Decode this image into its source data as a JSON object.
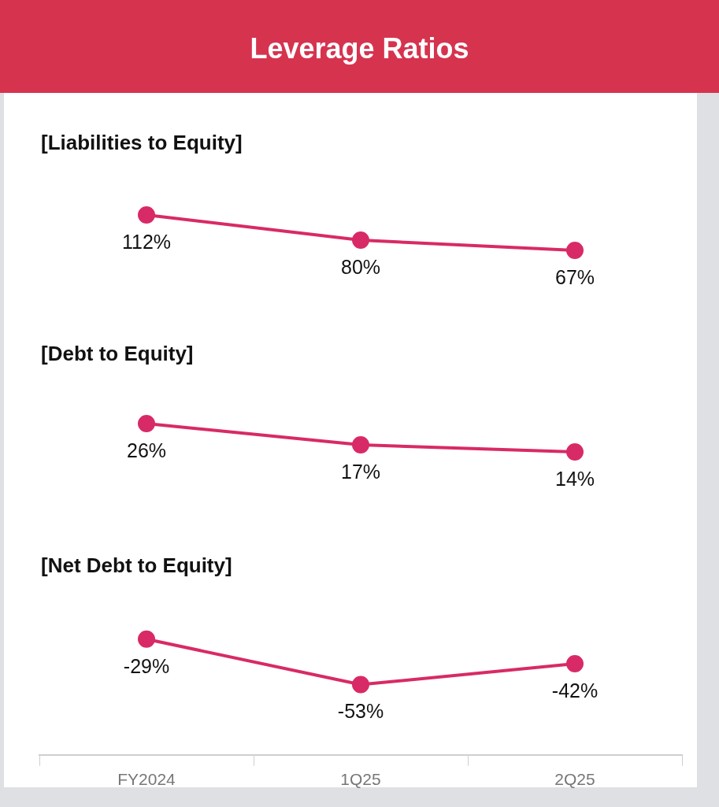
{
  "chart_data": [
    {
      "type": "line",
      "title": "Leverage Ratios",
      "subtitle": "[Liabilities to Equity]",
      "categories": [
        null,
        null,
        null
      ],
      "tick_labels": false,
      "legend": false,
      "marker": "circle",
      "series": [
        {
          "color": "#d82a66",
          "values": [
            112,
            80,
            67
          ],
          "value_labels": [
            "112%",
            "80%",
            "67%"
          ]
        }
      ]
    },
    {
      "type": "line",
      "title": "[Debt to Equity]",
      "categories": [
        null,
        null,
        null
      ],
      "tick_labels": false,
      "legend": false,
      "marker": "circle",
      "series": [
        {
          "color": "#d82a66",
          "values": [
            26,
            17,
            14
          ],
          "value_labels": [
            "26%",
            "17%",
            "14%"
          ]
        }
      ]
    },
    {
      "type": "line",
      "title": "[Net Debt to Equity]",
      "categories": [
        "FY2024",
        "1Q25",
        "2Q25"
      ],
      "tick_labels": "x",
      "legend": false,
      "marker": "circle",
      "series": [
        {
          "color": "#d82a66",
          "values": [
            -29,
            -53,
            -42
          ],
          "value_labels": [
            "-29%",
            "-53%",
            "-42%"
          ]
        }
      ]
    }
  ]
}
